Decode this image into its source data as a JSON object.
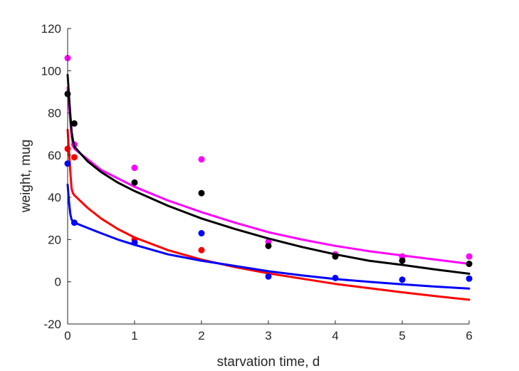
{
  "chart_data": {
    "type": "scatter",
    "title": "",
    "xlabel": "starvation time, d",
    "ylabel": "weight, mug",
    "xlim": [
      0,
      6
    ],
    "ylim": [
      -20,
      120
    ],
    "xticks": [
      0,
      1,
      2,
      3,
      4,
      5,
      6
    ],
    "yticks": [
      -20,
      0,
      20,
      40,
      60,
      80,
      100,
      120
    ],
    "grid": false,
    "legend": "none",
    "series": [
      {
        "color": "#ff00ff",
        "points": [
          [
            0,
            106
          ],
          [
            0.1,
            65
          ],
          [
            1,
            54
          ],
          [
            2,
            58
          ],
          [
            3,
            19
          ],
          [
            4,
            13
          ],
          [
            5,
            12
          ],
          [
            6,
            12
          ]
        ],
        "curve": [
          [
            0,
            92
          ],
          [
            0.02,
            84
          ],
          [
            0.04,
            76
          ],
          [
            0.06,
            69
          ],
          [
            0.08,
            65
          ],
          [
            0.1,
            63
          ],
          [
            0.3,
            58
          ],
          [
            0.5,
            53
          ],
          [
            0.75,
            49
          ],
          [
            1,
            45
          ],
          [
            1.5,
            38.5
          ],
          [
            2,
            33
          ],
          [
            2.5,
            28
          ],
          [
            3,
            23.5
          ],
          [
            3.5,
            20
          ],
          [
            4,
            17
          ],
          [
            4.5,
            14.5
          ],
          [
            5,
            12.5
          ],
          [
            5.5,
            10.5
          ],
          [
            6,
            8.5
          ]
        ]
      },
      {
        "color": "#000000",
        "points": [
          [
            0,
            89
          ],
          [
            0.1,
            75
          ],
          [
            1,
            47
          ],
          [
            2,
            42
          ],
          [
            3,
            17
          ],
          [
            4,
            12
          ],
          [
            5,
            10
          ],
          [
            6,
            8.5
          ]
        ],
        "curve": [
          [
            0,
            98
          ],
          [
            0.02,
            88
          ],
          [
            0.04,
            79
          ],
          [
            0.06,
            71
          ],
          [
            0.08,
            67
          ],
          [
            0.1,
            64
          ],
          [
            0.3,
            57
          ],
          [
            0.5,
            52
          ],
          [
            0.75,
            47
          ],
          [
            1,
            43
          ],
          [
            1.5,
            36
          ],
          [
            2,
            30
          ],
          [
            2.5,
            25
          ],
          [
            3,
            20.5
          ],
          [
            3.5,
            16.5
          ],
          [
            4,
            13
          ],
          [
            4.5,
            10
          ],
          [
            5,
            8
          ],
          [
            5.5,
            5.8
          ],
          [
            6,
            3.8
          ]
        ]
      },
      {
        "color": "#ff0000",
        "points": [
          [
            0,
            63
          ],
          [
            0.1,
            59
          ],
          [
            1,
            20
          ],
          [
            2,
            15
          ]
        ],
        "curve": [
          [
            0,
            72
          ],
          [
            0.02,
            62
          ],
          [
            0.04,
            52
          ],
          [
            0.06,
            44
          ],
          [
            0.08,
            42
          ],
          [
            0.1,
            41
          ],
          [
            0.3,
            35
          ],
          [
            0.5,
            30
          ],
          [
            0.75,
            25
          ],
          [
            1,
            21
          ],
          [
            1.5,
            15
          ],
          [
            2,
            10.5
          ],
          [
            2.5,
            7
          ],
          [
            3,
            4
          ],
          [
            3.5,
            1.5
          ],
          [
            4,
            -1
          ],
          [
            4.5,
            -3
          ],
          [
            5,
            -5
          ],
          [
            5.5,
            -6.8
          ],
          [
            6,
            -8.5
          ]
        ]
      },
      {
        "color": "#0000ff",
        "points": [
          [
            0,
            56
          ],
          [
            0.1,
            28
          ],
          [
            1,
            18.5
          ],
          [
            2,
            23
          ],
          [
            3,
            2.5
          ],
          [
            4,
            1.8
          ],
          [
            5,
            1
          ],
          [
            6,
            1.5
          ]
        ],
        "curve": [
          [
            0,
            46
          ],
          [
            0.02,
            38
          ],
          [
            0.04,
            32
          ],
          [
            0.06,
            29.5
          ],
          [
            0.08,
            28.5
          ],
          [
            0.1,
            28
          ],
          [
            0.3,
            25.5
          ],
          [
            0.5,
            23
          ],
          [
            0.75,
            20
          ],
          [
            1,
            17.5
          ],
          [
            1.5,
            13
          ],
          [
            2,
            10
          ],
          [
            2.5,
            7.5
          ],
          [
            3,
            5
          ],
          [
            3.5,
            3
          ],
          [
            4,
            1.3
          ],
          [
            4.5,
            0
          ],
          [
            5,
            -1.2
          ],
          [
            5.5,
            -2.3
          ],
          [
            6,
            -3.2
          ]
        ]
      }
    ]
  }
}
